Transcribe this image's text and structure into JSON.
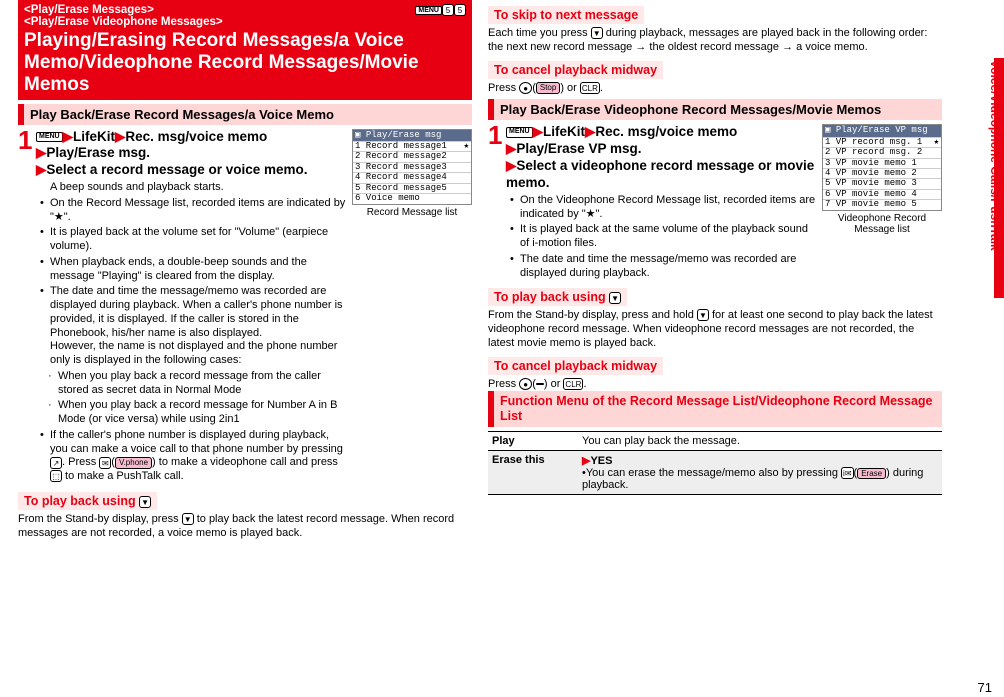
{
  "colors": {
    "brand": "#e60012",
    "section_bg": "#ffd6d6",
    "mini_bg": "#ffe8e8"
  },
  "left": {
    "breadcrumb1": "<Play/Erase Messages>",
    "breadcrumb2": "<Play/Erase Videophone Messages>",
    "title": "Playing/Erasing Record Messages/a Voice Memo/Videophone Record Messages/Movie Memos",
    "top_keys": [
      "5",
      "5"
    ],
    "section": "Play Back/Erase Record Messages/a Voice Memo",
    "step_num": "1",
    "step_parts": {
      "menu": "MENU",
      "p1": "LifeKit",
      "p2": "Rec. msg/voice memo",
      "p3": "Play/Erase msg.",
      "p4": "Select a record message or voice memo."
    },
    "screenshot": {
      "header": "▣ Play/Erase msg",
      "rows": [
        "1 Record message1",
        "2 Record message2",
        "3 Record message3",
        "4 Record message4",
        "5 Record message5",
        "6 Voice memo"
      ],
      "star_rows": [
        0
      ],
      "caption": "Record Message list"
    },
    "bul0": "A beep sounds and playback starts.",
    "bul1": "On the Record Message list, recorded items are indicated by \"★\".",
    "bul2": "It is played back at the volume set for \"Volume\" (earpiece volume).",
    "bul3": "When playback ends, a double-beep sounds and the message \"Playing\" is cleared from the display.",
    "bul4a": "The date and time the message/memo was recorded are displayed during playback. When a caller's phone number is provided, it is displayed. If the caller is stored in the Phonebook, his/her name is also displayed.",
    "bul4b": "However, the name is not displayed and the phone number only is displayed in the following cases:",
    "sub1": "When you play back a record message from the caller stored as secret data in Normal Mode",
    "sub2": "When you play back a record message for Number A in B Mode (or vice versa) while using 2in1",
    "bul5_pre": "If the caller's phone number is displayed during playback, you can make a voice call to that phone number by pressing ",
    "bul5_mid": ". Press ",
    "bul5_vphone": "V.phone",
    "bul5_mid2": ") to make a videophone call and press ",
    "bul5_end": " to make a PushTalk call.",
    "mini1": "To play back using ",
    "mini1_icon": "▼",
    "plain1_pre": "From the Stand-by display, press ",
    "plain1_post": " to play back the latest record message. When record messages are not recorded, a voice memo is played back."
  },
  "right": {
    "mini_skip": "To skip to next message",
    "skip_pre": "Each time you press ",
    "skip_post": " during playback, messages are played back in the following order: the next new record message → the oldest record message → a voice memo.",
    "mini_cancel": "To cancel playback midway",
    "cancel_pre": "Press ",
    "cancel_stop": "Stop",
    "cancel_or": ") or ",
    "cancel_clr": "CLR",
    "section": "Play Back/Erase Videophone Record Messages/Movie Memos",
    "step_num": "1",
    "step_parts": {
      "menu": "MENU",
      "p1": "LifeKit",
      "p2": "Rec. msg/voice memo",
      "p3": "Play/Erase VP msg.",
      "p4": "Select a videophone record message or movie memo."
    },
    "screenshot": {
      "header": "▣ Play/Erase VP msg",
      "rows": [
        "1 VP record msg. 1",
        "2 VP record msg. 2",
        "3 VP movie memo 1",
        "4 VP movie memo 2",
        "5 VP movie memo 3",
        "6 VP movie memo 4",
        "7 VP movie memo 5"
      ],
      "star_rows": [
        0
      ],
      "caption": "Videophone Record Message list"
    },
    "bul1": "On the Videophone Record Message list, recorded items are indicated by \"★\".",
    "bul2": "It is played back at the same volume of the playback sound of i-motion files.",
    "bul3": "The date and time the message/memo was recorded are displayed during playback.",
    "mini_play": "To play back using ",
    "mini_play_icon": "▼",
    "plain2_pre": "From the Stand-by display, press and hold ",
    "plain2_post": " for at least one second to play back the latest videophone record message. When videophone record messages are not recorded, the latest movie memo is played back.",
    "mini_cancel2": "To cancel playback midway",
    "cancel2_pre": "Press ",
    "cancel2_blank": " ",
    "cancel2_or": ") or ",
    "cancel2_clr": "CLR",
    "func_title": "Function Menu of the Record Message List/Videophone Record Message List",
    "tbl": {
      "r1l": "Play",
      "r1r": "You can play back the message.",
      "r2l": "Erase this",
      "r2_yes": "YES",
      "r2_pre": "You can erase the message/memo also by pressing ",
      "r2_erase": "Erase",
      "r2_post": ") during playback."
    }
  },
  "side_label": "Voice/Videophone Calls/PushTalk",
  "page_number": "71"
}
